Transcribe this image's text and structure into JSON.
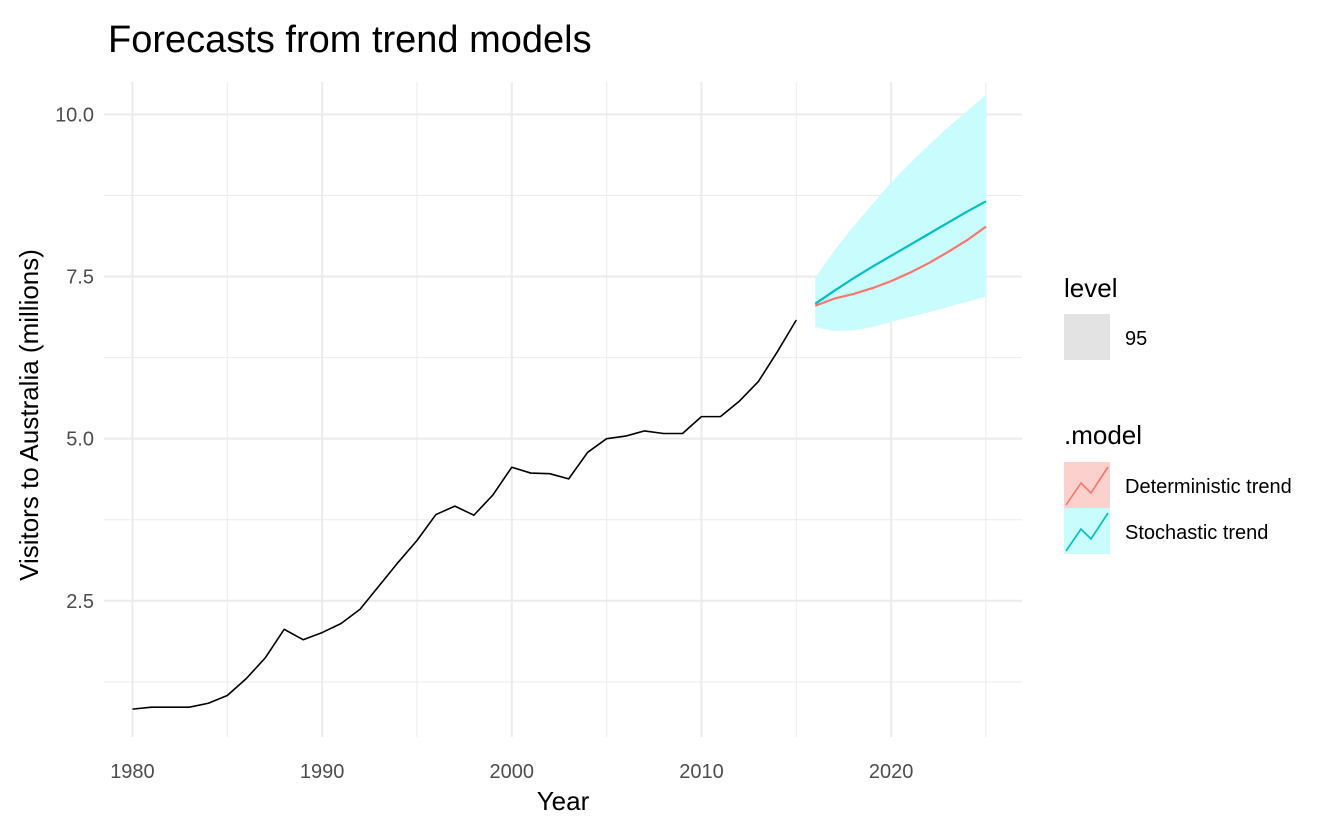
{
  "chart_data": {
    "type": "line",
    "title": "Forecasts from trend models",
    "xlabel": "Year",
    "ylabel": "Visitors to Australia (millions)",
    "xlim": [
      1978.5,
      2026.9
    ],
    "ylim": [
      0.4,
      10.5
    ],
    "x_ticks": [
      1980,
      1990,
      2000,
      2010,
      2020
    ],
    "x_tick_labels": [
      "1980",
      "1990",
      "2000",
      "2010",
      "2020"
    ],
    "y_ticks": [
      2.5,
      5.0,
      7.5,
      10.0
    ],
    "y_tick_labels": [
      "2.5",
      "5.0",
      "7.5",
      "10.0"
    ],
    "y_minor_ticks": [
      1.25,
      3.75,
      6.25,
      8.75
    ],
    "x_minor_ticks": [
      1985,
      1995,
      2005,
      2015,
      2025
    ],
    "grid": true,
    "colors": {
      "history": "#000000",
      "deterministic": "#F8766D",
      "stochastic": "#00BFC4",
      "interval_fill": "#c9fcfd",
      "grid": "#ebebeb",
      "level_key": "#e3e3e3",
      "deterministic_key_fill": "#fcd0cc",
      "stochastic_key_fill": "#c9fcfd"
    },
    "history": {
      "x": [
        1980,
        1981,
        1982,
        1983,
        1984,
        1985,
        1986,
        1987,
        1988,
        1989,
        1990,
        1991,
        1992,
        1993,
        1994,
        1995,
        1996,
        1997,
        1998,
        1999,
        2000,
        2001,
        2002,
        2003,
        2004,
        2005,
        2006,
        2007,
        2008,
        2009,
        2010,
        2011,
        2012,
        2013,
        2014,
        2015
      ],
      "y": [
        0.83,
        0.86,
        0.86,
        0.86,
        0.92,
        1.04,
        1.3,
        1.62,
        2.06,
        1.9,
        2.01,
        2.15,
        2.37,
        2.73,
        3.09,
        3.43,
        3.83,
        3.96,
        3.82,
        4.13,
        4.56,
        4.47,
        4.46,
        4.38,
        4.79,
        5.0,
        5.04,
        5.12,
        5.08,
        5.08,
        5.34,
        5.34,
        5.58,
        5.88,
        6.34,
        6.83
      ]
    },
    "series": [
      {
        "name": "Deterministic trend",
        "x": [
          2016,
          2017,
          2018,
          2019,
          2020,
          2021,
          2022,
          2023,
          2024,
          2025
        ],
        "y": [
          7.05,
          7.16,
          7.23,
          7.32,
          7.43,
          7.56,
          7.71,
          7.88,
          8.06,
          8.27
        ]
      },
      {
        "name": "Stochastic trend",
        "x": [
          2016,
          2017,
          2018,
          2019,
          2020,
          2021,
          2022,
          2023,
          2024,
          2025
        ],
        "y": [
          7.08,
          7.28,
          7.47,
          7.65,
          7.82,
          7.99,
          8.16,
          8.33,
          8.5,
          8.66
        ]
      }
    ],
    "interval": {
      "level": "95",
      "x": [
        2016,
        2017,
        2018,
        2019,
        2020,
        2021,
        2022,
        2023,
        2024,
        2025
      ],
      "lower": [
        6.72,
        6.66,
        6.67,
        6.72,
        6.8,
        6.88,
        6.95,
        7.03,
        7.11,
        7.19
      ],
      "upper": [
        7.48,
        7.9,
        8.27,
        8.61,
        8.95,
        9.25,
        9.53,
        9.8,
        10.05,
        10.3
      ]
    },
    "legend": {
      "placement": "right",
      "level_title": "level",
      "level_label": "95",
      "model_title": ".model",
      "entries": [
        "Deterministic trend",
        "Stochastic trend"
      ]
    }
  }
}
